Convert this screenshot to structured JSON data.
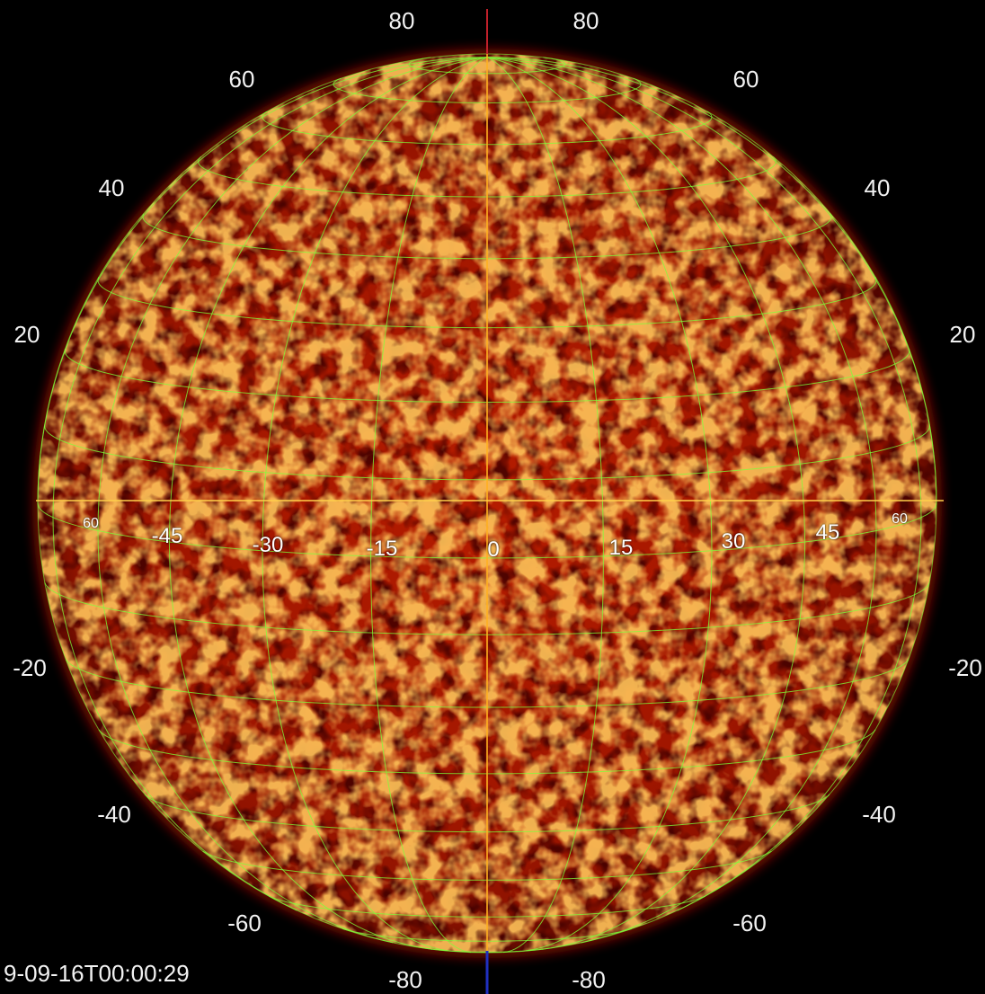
{
  "timestamp": "9-09-16T00:00:29",
  "latitude_labels_left": [
    "80",
    "60",
    "40",
    "20",
    "-20",
    "-40",
    "-60",
    "-80"
  ],
  "latitude_labels_right": [
    "80",
    "60",
    "40",
    "20",
    "-20",
    "-40",
    "-60",
    "-80"
  ],
  "longitude_labels": [
    "60",
    "-45",
    "-30",
    "-15",
    "0",
    "15",
    "30",
    "45",
    "60"
  ],
  "colors": {
    "background": "#000000",
    "disk_dark": "#6e0a00",
    "disk_mid": "#a81800",
    "disk_bright": "#ff9a30",
    "grid": "#7dff3a",
    "meridian": "#ffb020",
    "equator": "#ffd04a",
    "axis_top": "#c0202a",
    "axis_bottom": "#2030c0"
  }
}
